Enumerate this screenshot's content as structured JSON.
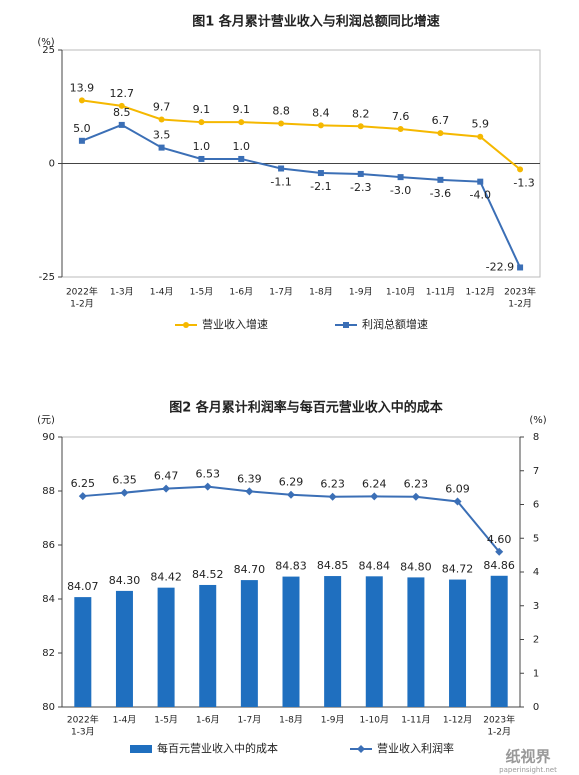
{
  "chart_data": [
    {
      "type": "line",
      "title": "图1  各月累计营业收入与利润总额同比增速",
      "unit": "(%)",
      "categories": [
        [
          "2022年",
          "1-2月"
        ],
        "1-3月",
        "1-4月",
        "1-5月",
        "1-6月",
        "1-7月",
        "1-8月",
        "1-9月",
        "1-10月",
        "1-11月",
        "1-12月",
        [
          "2023年",
          "1-2月"
        ]
      ],
      "ylim": [
        -25,
        25
      ],
      "yticks": [
        -25,
        0,
        25
      ],
      "series": [
        {
          "name": "营业收入增速",
          "color": "#f5b800",
          "marker": "circle",
          "values": [
            13.9,
            12.7,
            9.7,
            9.1,
            9.1,
            8.8,
            8.4,
            8.2,
            7.6,
            6.7,
            5.9,
            -1.3
          ]
        },
        {
          "name": "利润总额增速",
          "color": "#3b6fb6",
          "marker": "square",
          "values": [
            5.0,
            8.5,
            3.5,
            1.0,
            1.0,
            -1.1,
            -2.1,
            -2.3,
            -3.0,
            -3.6,
            -4.0,
            -22.9
          ],
          "value_labels": [
            "5.0",
            "8.5",
            "3.5",
            "1.0",
            "1.0",
            "-1.1",
            "-2.1",
            "-2.3",
            "-3.0",
            "-3.6",
            "-4.0",
            "-22.9"
          ]
        }
      ]
    },
    {
      "type": "combo",
      "title": "图2  各月累计利润率与每百元营业收入中的成本",
      "unit": "(元)",
      "unit2": "(%)",
      "categories": [
        [
          "2022年",
          "1-3月"
        ],
        "1-4月",
        "1-5月",
        "1-6月",
        "1-7月",
        "1-8月",
        "1-9月",
        "1-10月",
        "1-11月",
        "1-12月",
        [
          "2023年",
          "1-2月"
        ]
      ],
      "ylim": [
        80,
        90
      ],
      "yticks": [
        80,
        82,
        84,
        86,
        88,
        90
      ],
      "y2lim": [
        0,
        8
      ],
      "y2ticks": [
        0,
        1,
        2,
        3,
        4,
        5,
        6,
        7,
        8
      ],
      "series": [
        {
          "name": "每百元营业收入中的成本",
          "type": "bar",
          "color": "#1f6fbf",
          "values": [
            84.07,
            84.3,
            84.42,
            84.52,
            84.7,
            84.83,
            84.85,
            84.84,
            84.8,
            84.72,
            84.86
          ],
          "value_labels": [
            "84.07",
            "84.30",
            "84.42",
            "84.52",
            "84.70",
            "84.83",
            "84.85",
            "84.84",
            "84.80",
            "84.72",
            "84.86"
          ]
        },
        {
          "name": "营业收入利润率",
          "type": "line",
          "axis": "y2",
          "color": "#3b6fb6",
          "marker": "diamond",
          "values": [
            6.25,
            6.35,
            6.47,
            6.53,
            6.39,
            6.29,
            6.23,
            6.24,
            6.23,
            6.09,
            4.6
          ],
          "value_labels": [
            "6.25",
            "6.35",
            "6.47",
            "6.53",
            "6.39",
            "6.29",
            "6.23",
            "6.24",
            "6.23",
            "6.09",
            "4.60"
          ]
        }
      ]
    }
  ],
  "watermark": {
    "brand": "纸视界",
    "site": "paperinsight.net"
  }
}
